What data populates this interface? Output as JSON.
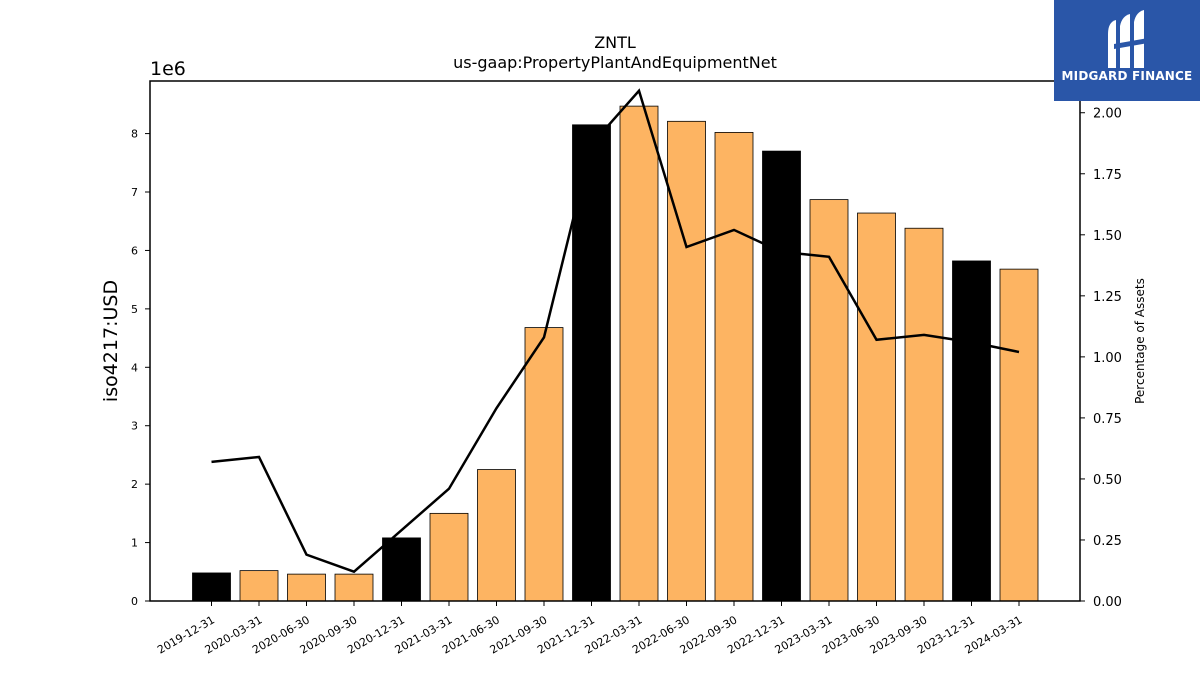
{
  "brand": {
    "name": "MIDGARD FINANCE",
    "logo_icon": "midgard-m-logo-icon",
    "bg_color": "#2a56a8"
  },
  "chart_data": {
    "type": "bar",
    "title": "ZNTL",
    "subtitle": "us-gaap:PropertyPlantAndEquipmentNet",
    "ylabel": "iso4217:USD",
    "y_multiplier": "1e6",
    "y2label": "Percentage of Assets",
    "categories": [
      "2019-12-31",
      "2020-03-31",
      "2020-06-30",
      "2020-09-30",
      "2020-12-31",
      "2021-03-31",
      "2021-06-30",
      "2021-09-30",
      "2021-12-31",
      "2022-03-31",
      "2022-06-30",
      "2022-09-30",
      "2022-12-31",
      "2023-03-31",
      "2023-06-30",
      "2023-09-30",
      "2023-12-31",
      "2024-03-31"
    ],
    "series": [
      {
        "axis": "left",
        "kind": "bar",
        "values": [
          480000,
          520000,
          460000,
          460000,
          1080000,
          1500000,
          2250000,
          4680000,
          8150000,
          8470000,
          8210000,
          8020000,
          7700000,
          6870000,
          6640000,
          6380000,
          5820000,
          5680000
        ],
        "fiscal_year_end": [
          true,
          false,
          false,
          false,
          true,
          false,
          false,
          false,
          true,
          false,
          false,
          false,
          true,
          false,
          false,
          false,
          true,
          false
        ],
        "color_annual": "#000000",
        "color_quarter": "#fdb462"
      },
      {
        "axis": "right",
        "kind": "line",
        "color": "#000000",
        "values": [
          0.57,
          0.59,
          0.19,
          0.12,
          0.29,
          0.46,
          0.79,
          1.08,
          1.87,
          2.09,
          1.45,
          1.52,
          1.43,
          1.41,
          1.07,
          1.09,
          1.06,
          1.02
        ]
      }
    ],
    "ylim": [
      0,
      8900000
    ],
    "y_ticks": [
      0,
      1,
      2,
      3,
      4,
      5,
      6,
      7,
      8
    ],
    "y2lim": [
      0,
      2.13
    ],
    "y2_ticks": [
      "0.00",
      "0.25",
      "0.50",
      "0.75",
      "1.00",
      "1.25",
      "1.50",
      "1.75",
      "2.00"
    ],
    "grid": false,
    "legend": "none"
  }
}
